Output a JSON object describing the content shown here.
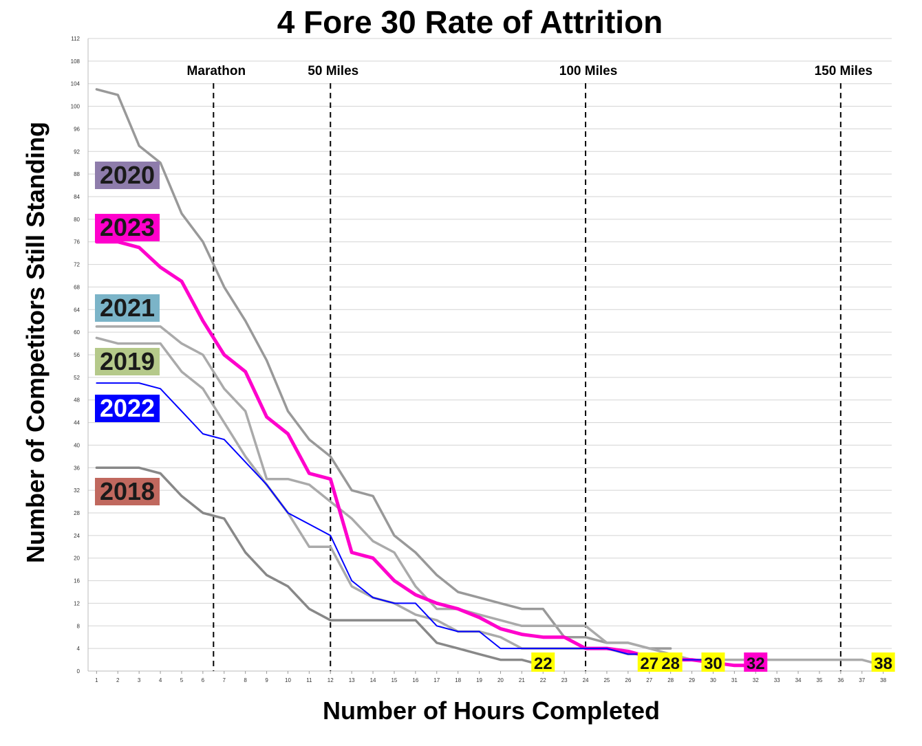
{
  "chart_data": {
    "type": "line",
    "title": "4 Fore 30 Rate of Attrition",
    "xlabel": "Number of Hours Completed",
    "ylabel": "Number of Competitors Still Standing",
    "x_ticks": [
      1,
      2,
      3,
      4,
      5,
      6,
      7,
      8,
      9,
      10,
      11,
      12,
      13,
      14,
      15,
      16,
      17,
      18,
      19,
      20,
      21,
      22,
      23,
      24,
      25,
      26,
      27,
      28,
      29,
      30,
      31,
      32,
      33,
      34,
      35,
      36,
      37,
      38
    ],
    "y_ticks": [
      0,
      4,
      8,
      12,
      16,
      20,
      24,
      28,
      32,
      36,
      40,
      44,
      48,
      52,
      56,
      60,
      64,
      68,
      72,
      76,
      80,
      84,
      88,
      92,
      96,
      100,
      104,
      108,
      112
    ],
    "xlim": [
      0.6,
      38.4
    ],
    "ylim": [
      0,
      112
    ],
    "grid": true,
    "milestones": [
      {
        "label": "Marathon",
        "x": 6.5
      },
      {
        "label": "50 Miles",
        "x": 12
      },
      {
        "label": "100 Miles",
        "x": 24
      },
      {
        "label": "150 Miles",
        "x": 36
      }
    ],
    "series": [
      {
        "name": "2020",
        "label_color": "#8e7cab",
        "line_color": "#999999",
        "line_width": 3.5,
        "x": [
          1,
          2,
          3,
          4,
          5,
          6,
          7,
          8,
          9,
          10,
          11,
          12,
          13,
          14,
          15,
          16,
          17,
          18,
          19,
          20,
          21,
          22,
          23,
          24,
          25,
          26,
          27,
          28
        ],
        "y": [
          103,
          102,
          93,
          90,
          81,
          76,
          68,
          62,
          55,
          46,
          41,
          38,
          32,
          31,
          24,
          21,
          17,
          14,
          13,
          12,
          11,
          11,
          6,
          6,
          5,
          5,
          4,
          4
        ]
      },
      {
        "name": "2023",
        "label_color": "#ff00cc",
        "line_color": "#ff00cc",
        "line_width": 5,
        "x": [
          1,
          2,
          3,
          4,
          5,
          6,
          7,
          8,
          9,
          10,
          11,
          12,
          13,
          14,
          15,
          16,
          17,
          18,
          19,
          20,
          21,
          22,
          23,
          24,
          25,
          26,
          27,
          28,
          29,
          30,
          31,
          32
        ],
        "y": [
          76,
          76,
          75,
          71.5,
          69,
          62,
          56,
          53,
          45,
          42,
          35,
          34,
          21,
          20,
          16,
          13.5,
          12,
          11,
          9.5,
          7.5,
          6.5,
          6,
          6,
          4,
          4,
          3.5,
          2.5,
          2,
          2,
          1.5,
          1,
          1
        ]
      },
      {
        "name": "2021",
        "label_color": "#7bb4c8",
        "line_color": "#aaaaaa",
        "line_width": 3.5,
        "x": [
          1,
          2,
          3,
          4,
          5,
          6,
          7,
          8,
          9,
          10,
          11,
          12,
          13,
          14,
          15,
          16,
          17,
          18,
          19,
          20,
          21,
          22,
          23,
          24,
          25,
          26,
          27,
          28,
          29,
          30,
          31,
          32,
          33,
          34,
          35,
          36,
          37,
          38
        ],
        "y": [
          61,
          61,
          61,
          61,
          58,
          56,
          50,
          46,
          34,
          34,
          33,
          30,
          27,
          23,
          21,
          15,
          11,
          11,
          10,
          9,
          8,
          8,
          8,
          8,
          5,
          5,
          4,
          3,
          2,
          2,
          2,
          2,
          2,
          2,
          2,
          2,
          2,
          1
        ]
      },
      {
        "name": "2019",
        "label_color": "#b5c98a",
        "line_color": "#aaaaaa",
        "line_width": 3.5,
        "x": [
          1,
          2,
          3,
          4,
          5,
          6,
          7,
          8,
          9,
          10,
          11,
          12,
          13,
          14,
          15,
          16,
          17,
          18,
          19,
          20,
          21,
          22,
          23,
          24,
          25,
          26,
          27
        ],
        "y": [
          59,
          58,
          58,
          58,
          53,
          50,
          44,
          38,
          33,
          28,
          22,
          22,
          15,
          13,
          12,
          10,
          9,
          7,
          7,
          6,
          4,
          4,
          4,
          4,
          4,
          3,
          3
        ]
      },
      {
        "name": "2022",
        "label_color": "#0000ff",
        "line_color": "#0000ff",
        "line_width": 2,
        "x": [
          1,
          2,
          3,
          4,
          5,
          6,
          7,
          8,
          9,
          10,
          11,
          12,
          13,
          14,
          15,
          16,
          17,
          18,
          19,
          20,
          21,
          22,
          23,
          24,
          25,
          26,
          27,
          28,
          29,
          30
        ],
        "y": [
          51,
          51,
          51,
          50,
          46,
          42,
          41,
          37,
          33,
          28,
          26,
          24,
          16,
          13,
          12,
          12,
          8,
          7,
          7,
          4,
          4,
          4,
          4,
          4,
          4,
          3,
          3,
          2,
          2,
          2
        ]
      },
      {
        "name": "2018",
        "label_color": "#c0685e",
        "line_color": "#888888",
        "line_width": 3.5,
        "x": [
          1,
          2,
          3,
          4,
          5,
          6,
          7,
          8,
          9,
          10,
          11,
          12,
          13,
          14,
          15,
          16,
          17,
          18,
          19,
          20,
          21,
          22
        ],
        "y": [
          36,
          36,
          36,
          35,
          31,
          28,
          27,
          21,
          17,
          15,
          11,
          9,
          9,
          9,
          9,
          9,
          5,
          4,
          3,
          2,
          2,
          1
        ]
      }
    ],
    "end_labels": [
      {
        "text": "22",
        "x": 22,
        "bg": "#ffff00"
      },
      {
        "text": "27",
        "x": 27,
        "bg": "#ffff00"
      },
      {
        "text": "28",
        "x": 28,
        "bg": "#ffff00"
      },
      {
        "text": "30",
        "x": 30,
        "bg": "#ffff00"
      },
      {
        "text": "32",
        "x": 32,
        "bg": "#ff00cc"
      },
      {
        "text": "38",
        "x": 38,
        "bg": "#ffff00"
      }
    ],
    "legend_placement": "left, stacked in series order"
  }
}
